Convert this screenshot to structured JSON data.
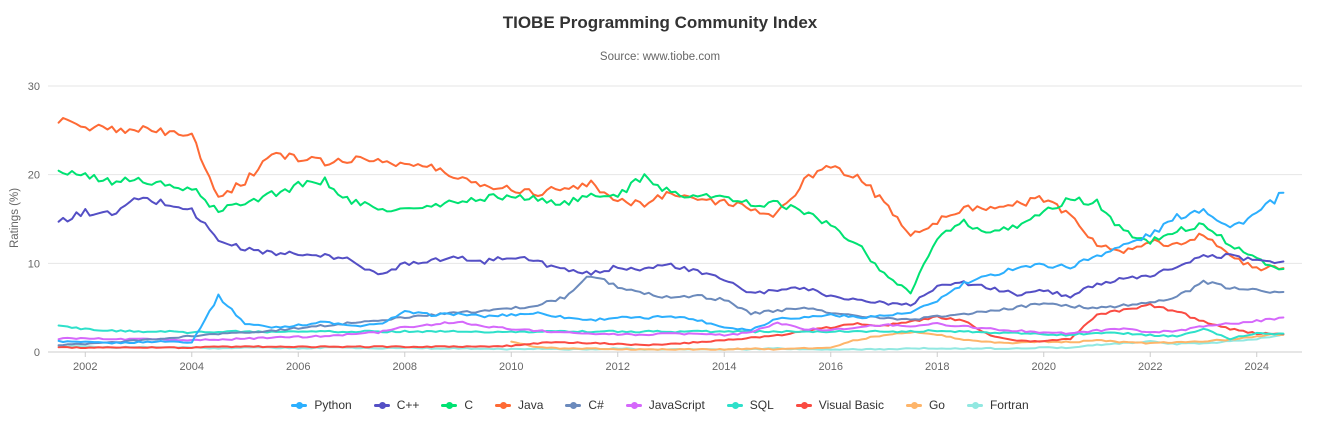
{
  "chart_data": {
    "type": "line",
    "title": "TIOBE Programming Community Index",
    "subtitle": "Source: www.tiobe.com",
    "xlabel": "",
    "ylabel": "Ratings (%)",
    "ylim": [
      0,
      30
    ],
    "y_ticks": [
      0,
      10,
      20,
      30
    ],
    "x_ticks": [
      2002,
      2004,
      2006,
      2008,
      2010,
      2012,
      2014,
      2016,
      2018,
      2020,
      2022,
      2024
    ],
    "xlim": [
      2001.3,
      2024.85
    ],
    "x_start": 2001.5,
    "x_step": 0.5,
    "grid": "horizontal",
    "legend_position": "bottom",
    "series": [
      {
        "name": "Python",
        "color": "#2caffe",
        "values": [
          1.2,
          1.1,
          1.0,
          1.1,
          1.2,
          1.1,
          6.3,
          3.2,
          2.8,
          3.0,
          3.4,
          2.9,
          3.1,
          4.5,
          4.2,
          4.3,
          4.0,
          4.2,
          4.4,
          3.9,
          3.6,
          3.9,
          3.8,
          4.1,
          3.6,
          2.8,
          2.5,
          3.8,
          3.9,
          4.2,
          3.9,
          4.1,
          4.4,
          5.8,
          7.7,
          8.6,
          9.6,
          9.8,
          9.6,
          10.9,
          12.0,
          13.2,
          15.2,
          16.2,
          14.0,
          15.6,
          17.9
        ]
      },
      {
        "name": "C++",
        "color": "#544fc5",
        "values": [
          14.6,
          15.8,
          15.5,
          17.3,
          16.8,
          16.0,
          12.6,
          11.6,
          11.2,
          11.0,
          10.8,
          10.4,
          8.6,
          10.0,
          10.4,
          10.6,
          10.2,
          10.8,
          10.2,
          9.2,
          8.8,
          9.6,
          9.4,
          9.8,
          9.0,
          8.2,
          6.6,
          6.9,
          7.3,
          6.3,
          5.9,
          5.5,
          5.3,
          7.5,
          7.8,
          7.2,
          6.5,
          6.9,
          6.3,
          7.7,
          8.2,
          8.5,
          9.7,
          10.7,
          10.9,
          10.3,
          10.1
        ]
      },
      {
        "name": "C",
        "color": "#00e272",
        "values": [
          20.5,
          19.8,
          19.2,
          19.5,
          18.7,
          18.4,
          15.8,
          17.0,
          17.8,
          18.8,
          19.3,
          16.9,
          16.2,
          16.0,
          16.4,
          16.9,
          17.4,
          17.6,
          17.2,
          16.8,
          17.5,
          17.8,
          19.7,
          18.0,
          17.6,
          17.4,
          16.7,
          16.8,
          15.8,
          14.2,
          12.2,
          8.8,
          6.8,
          12.8,
          14.6,
          13.2,
          14.3,
          15.8,
          17.2,
          16.8,
          13.6,
          12.4,
          13.8,
          14.3,
          12.2,
          10.5,
          9.3
        ]
      },
      {
        "name": "Java",
        "color": "#fe6a35",
        "values": [
          26.3,
          25.4,
          25.0,
          25.2,
          24.7,
          24.4,
          17.6,
          19.2,
          22.4,
          21.8,
          21.4,
          21.8,
          21.6,
          21.2,
          20.8,
          19.6,
          18.9,
          18.4,
          18.0,
          18.6,
          18.9,
          17.2,
          16.6,
          18.2,
          17.1,
          17.0,
          16.0,
          15.5,
          19.3,
          20.9,
          19.9,
          16.8,
          13.2,
          14.8,
          16.2,
          16.4,
          16.6,
          17.3,
          15.2,
          12.2,
          11.2,
          12.6,
          12.0,
          13.4,
          10.8,
          9.4,
          9.6
        ]
      },
      {
        "name": "C#",
        "color": "#6b8abc",
        "values": [
          0.8,
          0.9,
          1.1,
          1.3,
          1.5,
          1.8,
          2.0,
          2.2,
          2.4,
          2.7,
          3.0,
          3.3,
          3.6,
          3.9,
          4.2,
          4.4,
          4.6,
          4.9,
          5.3,
          6.2,
          8.7,
          7.4,
          6.6,
          6.1,
          6.3,
          5.9,
          4.3,
          4.7,
          4.9,
          4.5,
          4.1,
          3.8,
          3.6,
          4.0,
          4.3,
          4.6,
          5.0,
          5.6,
          5.2,
          4.9,
          5.3,
          5.6,
          6.2,
          7.9,
          7.2,
          6.9,
          6.6
        ]
      },
      {
        "name": "JavaScript",
        "color": "#d568fb",
        "values": [
          1.5,
          1.6,
          1.4,
          1.5,
          1.4,
          1.3,
          1.4,
          1.5,
          1.6,
          1.7,
          1.8,
          2.0,
          2.2,
          2.8,
          3.1,
          3.4,
          2.9,
          2.6,
          2.4,
          2.2,
          2.1,
          2.0,
          1.9,
          2.1,
          2.0,
          1.9,
          2.2,
          3.3,
          2.6,
          2.5,
          2.8,
          3.1,
          2.9,
          3.2,
          2.9,
          2.6,
          2.4,
          2.2,
          2.1,
          2.4,
          2.6,
          2.2,
          2.4,
          2.9,
          3.2,
          3.5,
          3.9
        ]
      },
      {
        "name": "SQL",
        "color": "#2ee0ca",
        "values": [
          2.9,
          2.6,
          2.4,
          2.3,
          2.3,
          2.2,
          2.3,
          2.3,
          2.3,
          2.3,
          2.3,
          2.3,
          2.3,
          2.3,
          2.3,
          2.3,
          2.3,
          2.3,
          2.3,
          2.3,
          2.3,
          2.3,
          2.3,
          2.3,
          2.3,
          2.3,
          2.3,
          2.3,
          2.3,
          2.3,
          2.3,
          2.3,
          2.3,
          2.4,
          2.3,
          2.2,
          2.1,
          2.0,
          1.9,
          2.2,
          2.1,
          1.9,
          1.8,
          2.6,
          1.5,
          2.1,
          2.0
        ]
      },
      {
        "name": "Visual Basic",
        "color": "#fa4b42",
        "values": [
          0.5,
          0.5,
          0.5,
          0.5,
          0.5,
          0.5,
          0.6,
          0.6,
          0.6,
          0.6,
          0.6,
          0.6,
          0.6,
          0.6,
          0.6,
          0.6,
          0.6,
          0.7,
          1.0,
          1.1,
          1.0,
          0.9,
          0.8,
          0.9,
          1.1,
          1.3,
          1.6,
          1.9,
          2.3,
          2.8,
          3.2,
          3.0,
          3.4,
          4.0,
          3.5,
          1.9,
          1.3,
          1.2,
          1.5,
          4.2,
          4.7,
          5.3,
          4.6,
          3.4,
          2.6,
          2.1,
          2.0
        ]
      },
      {
        "name": "Go",
        "color": "#feb56a",
        "values": [
          null,
          null,
          null,
          null,
          null,
          null,
          null,
          null,
          null,
          null,
          null,
          null,
          null,
          null,
          null,
          null,
          null,
          1.2,
          0.5,
          0.4,
          0.4,
          0.3,
          0.3,
          0.3,
          0.3,
          0.3,
          0.4,
          0.3,
          0.4,
          0.5,
          1.4,
          1.9,
          2.2,
          2.0,
          1.4,
          1.1,
          1.0,
          1.2,
          1.1,
          1.3,
          1.1,
          1.0,
          1.1,
          1.2,
          1.4,
          1.8,
          2.0
        ]
      },
      {
        "name": "Fortran",
        "color": "#91e8e1",
        "values": [
          0.7,
          0.6,
          0.5,
          0.6,
          0.5,
          0.5,
          0.4,
          0.5,
          0.5,
          0.4,
          0.5,
          0.5,
          0.4,
          0.5,
          0.4,
          0.4,
          0.4,
          0.3,
          0.4,
          0.3,
          0.3,
          0.4,
          0.3,
          0.3,
          0.3,
          0.3,
          0.3,
          0.4,
          0.3,
          0.3,
          0.3,
          0.3,
          0.4,
          0.4,
          0.4,
          0.4,
          0.4,
          0.5,
          0.5,
          0.8,
          1.0,
          1.2,
          0.9,
          1.0,
          1.2,
          1.5,
          1.9
        ]
      }
    ]
  },
  "colors": {
    "grid": "#e6e6e6",
    "axis_line": "#cccccc",
    "tick_label": "#666666",
    "title_text": "#333333"
  }
}
